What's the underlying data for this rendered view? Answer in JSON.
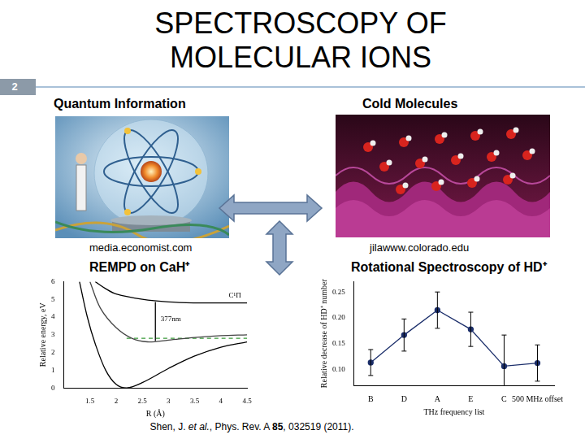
{
  "slide": {
    "number": "2",
    "title": "SPECTROSCOPY OF MOLECULAR IONS"
  },
  "panels": [
    {
      "heading": "Quantum Information",
      "credit": "media.economist.com"
    },
    {
      "heading": "Cold Molecules",
      "credit": "jilawww.colorado.edu"
    }
  ],
  "chart_data": [
    {
      "type": "line",
      "title": "REMPD on CaH⁺",
      "x_label": "R (Å)",
      "y_label": "Relative energy, eV",
      "xlim": [
        1,
        4.5
      ],
      "xticks": [
        1.5,
        2,
        2.5,
        3,
        3.5,
        4,
        4.5
      ],
      "ylim": [
        0,
        6
      ],
      "yticks": [
        0,
        1,
        2,
        3,
        4,
        5,
        6
      ],
      "grid": false,
      "series": [
        {
          "color": "#000000",
          "marker": "none",
          "line_style": "solid",
          "x": [
            1.3,
            1.45,
            1.6,
            1.8,
            2.0,
            2.2,
            2.5,
            3.0,
            3.5,
            4.0,
            4.5
          ],
          "values": [
            6,
            4,
            2.5,
            1,
            0.2,
            0,
            0.3,
            1.1,
            1.8,
            2.3,
            2.6
          ]
        },
        {
          "color": "#444444",
          "marker": "none",
          "line_style": "solid",
          "x": [
            1.5,
            1.7,
            2.0,
            2.3,
            2.6,
            3.0,
            3.5,
            4.0,
            4.5
          ],
          "values": [
            6,
            4.5,
            3.4,
            2.8,
            2.6,
            2.7,
            2.85,
            2.95,
            3.0
          ]
        },
        {
          "color": "#000000",
          "marker": "none",
          "line_style": "solid",
          "x": [
            1.6,
            1.8,
            2.0,
            2.5,
            3.0,
            3.5,
            4.0,
            4.5
          ],
          "values": [
            6,
            5.6,
            5.3,
            5.0,
            4.85,
            4.8,
            4.8,
            4.8
          ]
        },
        {
          "color": "#3a9a3a",
          "marker": "none",
          "line_style": "dashed",
          "x": [
            2.2,
            4.5
          ],
          "values": [
            2.8,
            2.8
          ]
        },
        {
          "color": "#000000",
          "marker": "none",
          "line_style": "solid",
          "x": [
            2.75,
            2.75
          ],
          "values": [
            2.65,
            4.85
          ]
        }
      ],
      "annotations": [
        {
          "text": "377nm",
          "x": 2.85,
          "y": 3.9
        },
        {
          "text": "C¹Π",
          "x": 4.15,
          "y": 5.2
        }
      ]
    },
    {
      "type": "line",
      "title": "Rotational Spectroscopy of HD⁺",
      "x_label": "THz frequency list",
      "y_label": "Relative decrease of HD⁺ number",
      "categories": [
        "B",
        "D",
        "A",
        "E",
        "C",
        "500 MHz offset"
      ],
      "values": [
        0.114,
        0.167,
        0.215,
        0.178,
        0.107,
        0.113
      ],
      "errors": [
        0.025,
        0.031,
        0.035,
        0.033,
        0.06,
        0.035
      ],
      "ylim": [
        0.07,
        0.27
      ],
      "yticks": [
        {
          "value": 0.1,
          "label": "0.10"
        },
        {
          "value": 0.15,
          "label": "0.15"
        },
        {
          "value": 0.2,
          "label": "0.20"
        },
        {
          "value": 0.25,
          "label": "0.25"
        }
      ],
      "color": "#1c2f6b",
      "marker": "circle",
      "grid": false
    }
  ],
  "citation": [
    "Shen, J. ",
    "et al.",
    ", Phys. Rev. A ",
    "85",
    ", 032519 (2011)."
  ]
}
